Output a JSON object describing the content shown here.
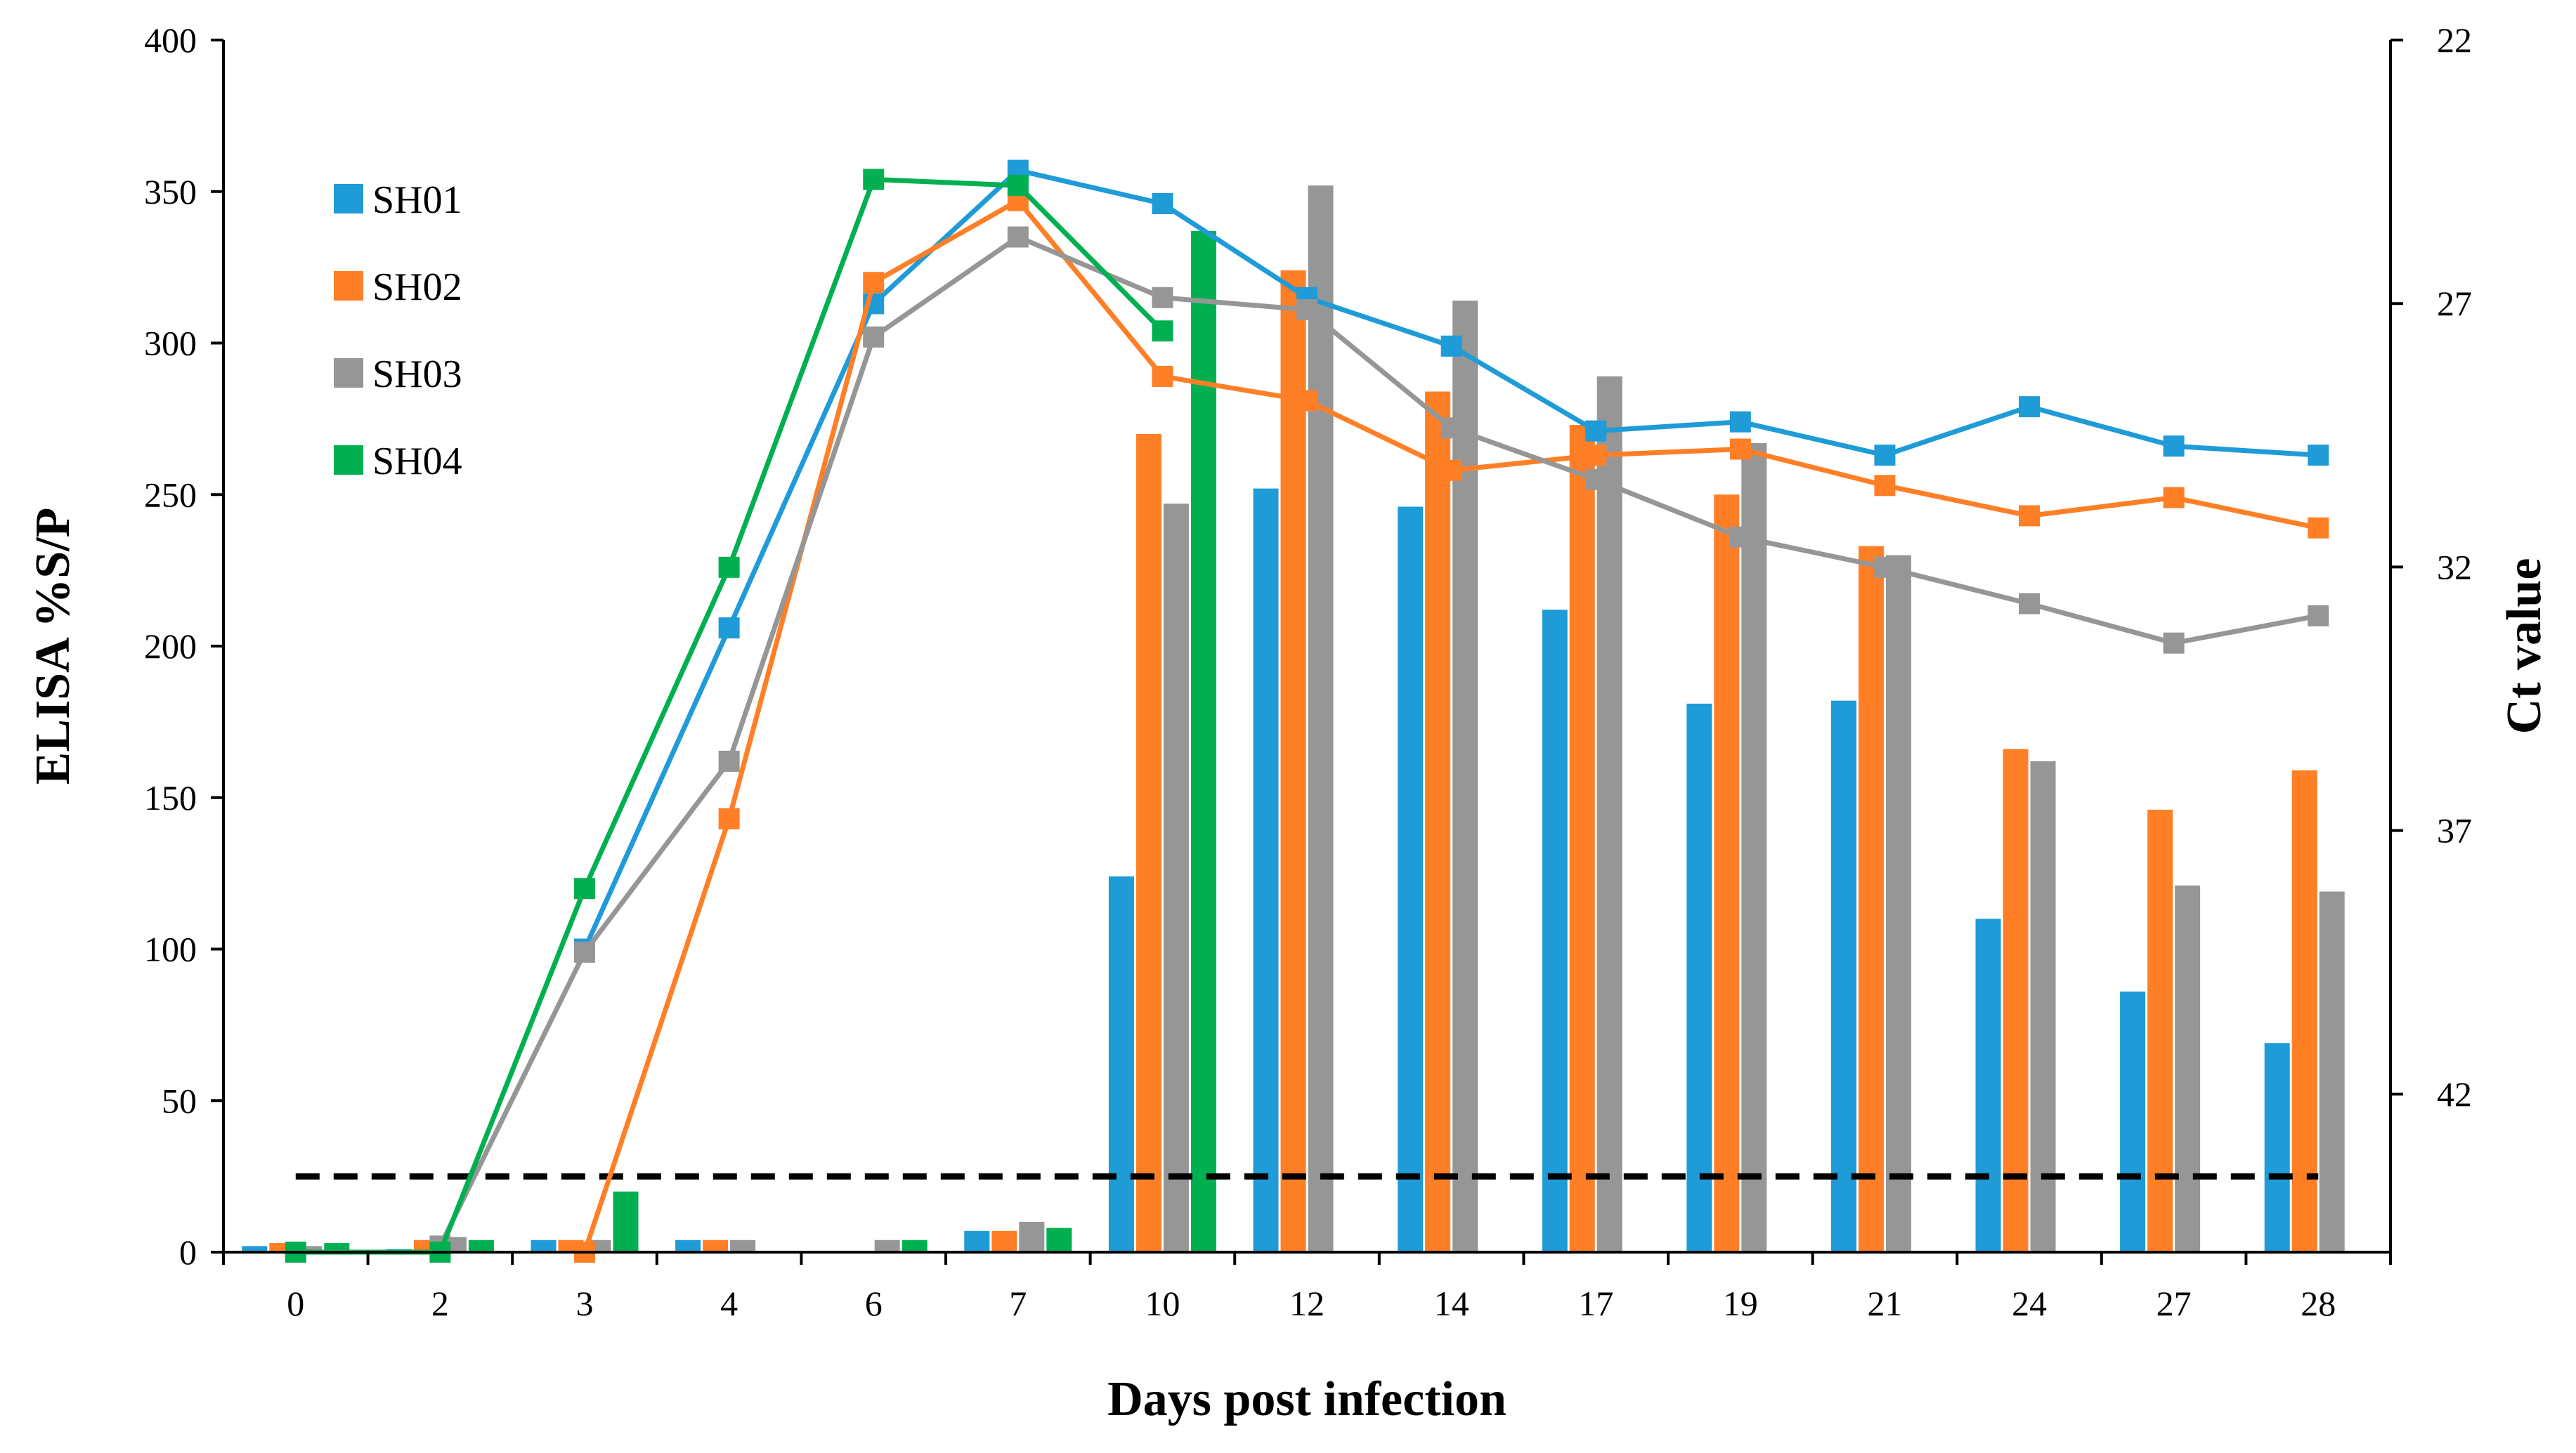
{
  "chart_data": {
    "type": "bar+line",
    "xlabel": "Days post infection",
    "ylabel_left": "ELISA %S/P",
    "ylabel_right": "Ct value",
    "categories": [
      "0",
      "2",
      "3",
      "4",
      "6",
      "7",
      "10",
      "12",
      "14",
      "17",
      "19",
      "21",
      "24",
      "27",
      "28"
    ],
    "ylim_left": [
      0,
      400
    ],
    "yticks_left": [
      0,
      50,
      100,
      150,
      200,
      250,
      300,
      350,
      400
    ],
    "ylim_right": [
      22,
      45
    ],
    "yticks_right": [
      22,
      27,
      32,
      37,
      42
    ],
    "cutoff_line": {
      "value": 25,
      "style": "dashed",
      "color": "#000000"
    },
    "legend": [
      "SH01",
      "SH02",
      "SH03",
      "SH04"
    ],
    "colors": {
      "SH01": "#1F9BD7",
      "SH02": "#FF7F27",
      "SH03": "#969696",
      "SH04": "#00B050"
    },
    "bars_elisa": [
      {
        "name": "SH01",
        "values": [
          2,
          1,
          4,
          4,
          0,
          7,
          124,
          252,
          246,
          212,
          181,
          182,
          110,
          86,
          69
        ]
      },
      {
        "name": "SH02",
        "values": [
          3,
          4,
          4,
          4,
          0,
          7,
          270,
          324,
          284,
          273,
          250,
          233,
          166,
          146,
          159
        ]
      },
      {
        "name": "SH03",
        "values": [
          2,
          5,
          4,
          4,
          4,
          10,
          247,
          352,
          314,
          289,
          267,
          230,
          162,
          121,
          119
        ]
      },
      {
        "name": "SH04",
        "values": [
          3,
          4,
          20,
          0,
          4,
          8,
          337,
          0,
          0,
          0,
          0,
          0,
          0,
          0,
          0
        ]
      }
    ],
    "lines_ct": [
      {
        "name": "SH01",
        "values": [
          null,
          null,
          100,
          206,
          313,
          357,
          346,
          315,
          299,
          271,
          274,
          263,
          279,
          266,
          263
        ]
      },
      {
        "name": "SH02",
        "values": [
          null,
          null,
          0,
          143,
          320,
          347,
          289,
          281,
          258,
          263,
          265,
          253,
          243,
          249,
          239
        ]
      },
      {
        "name": "SH03",
        "values": [
          null,
          2,
          99,
          162,
          302,
          335,
          315,
          311,
          272,
          255,
          236,
          226,
          214,
          201,
          210
        ]
      },
      {
        "name": "SH04",
        "values": [
          0,
          0,
          120,
          226,
          354,
          352,
          304,
          null,
          null,
          null,
          null,
          null,
          null,
          null,
          null
        ]
      }
    ],
    "ct_line_note": "line values expressed on the left-axis scale as drawn"
  }
}
